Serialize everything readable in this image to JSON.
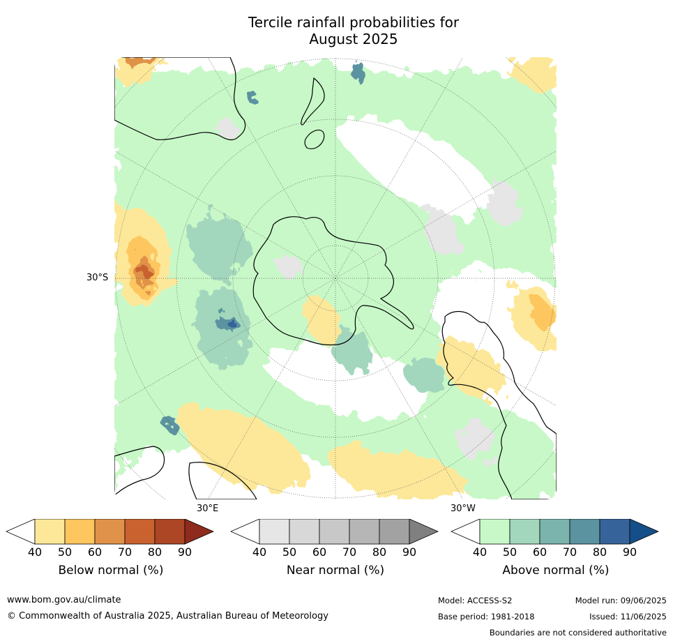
{
  "title": {
    "line1": "Tercile rainfall probabilities for",
    "line2": "August 2025"
  },
  "map": {
    "lat_label": "30°S",
    "lon_labels": [
      "30°E",
      "30°W"
    ]
  },
  "colorbars": [
    {
      "name": "Below normal (%)",
      "ticks": [
        "40",
        "50",
        "60",
        "70",
        "80",
        "90"
      ],
      "colors": [
        "#ffffff",
        "#fde89a",
        "#fdc65e",
        "#e0924a",
        "#c9622f",
        "#ac4625",
        "#8e2b1c"
      ]
    },
    {
      "name": "Near normal (%)",
      "ticks": [
        "40",
        "50",
        "60",
        "70",
        "80",
        "90"
      ],
      "colors": [
        "#ffffff",
        "#e6e6e6",
        "#d8d8d8",
        "#c8c8c8",
        "#b6b6b6",
        "#a2a2a2",
        "#808080"
      ]
    },
    {
      "name": "Above normal (%)",
      "ticks": [
        "40",
        "50",
        "60",
        "70",
        "80",
        "90"
      ],
      "colors": [
        "#ffffff",
        "#c8f8c8",
        "#a3d7bd",
        "#7bb4ad",
        "#5b93a0",
        "#36649a",
        "#154f89"
      ]
    }
  ],
  "footer": {
    "url": "www.bom.gov.au/climate",
    "copyright": "© Commonwealth of Australia 2025, Australian Bureau of Meteorology",
    "model": "Model: ACCESS-S2",
    "base_period": "Base period: 1981-2018",
    "model_run": "Model run: 09/06/2025",
    "issued": "Issued: 11/06/2025",
    "disclaimer": "Boundaries are not considered authoritative"
  }
}
